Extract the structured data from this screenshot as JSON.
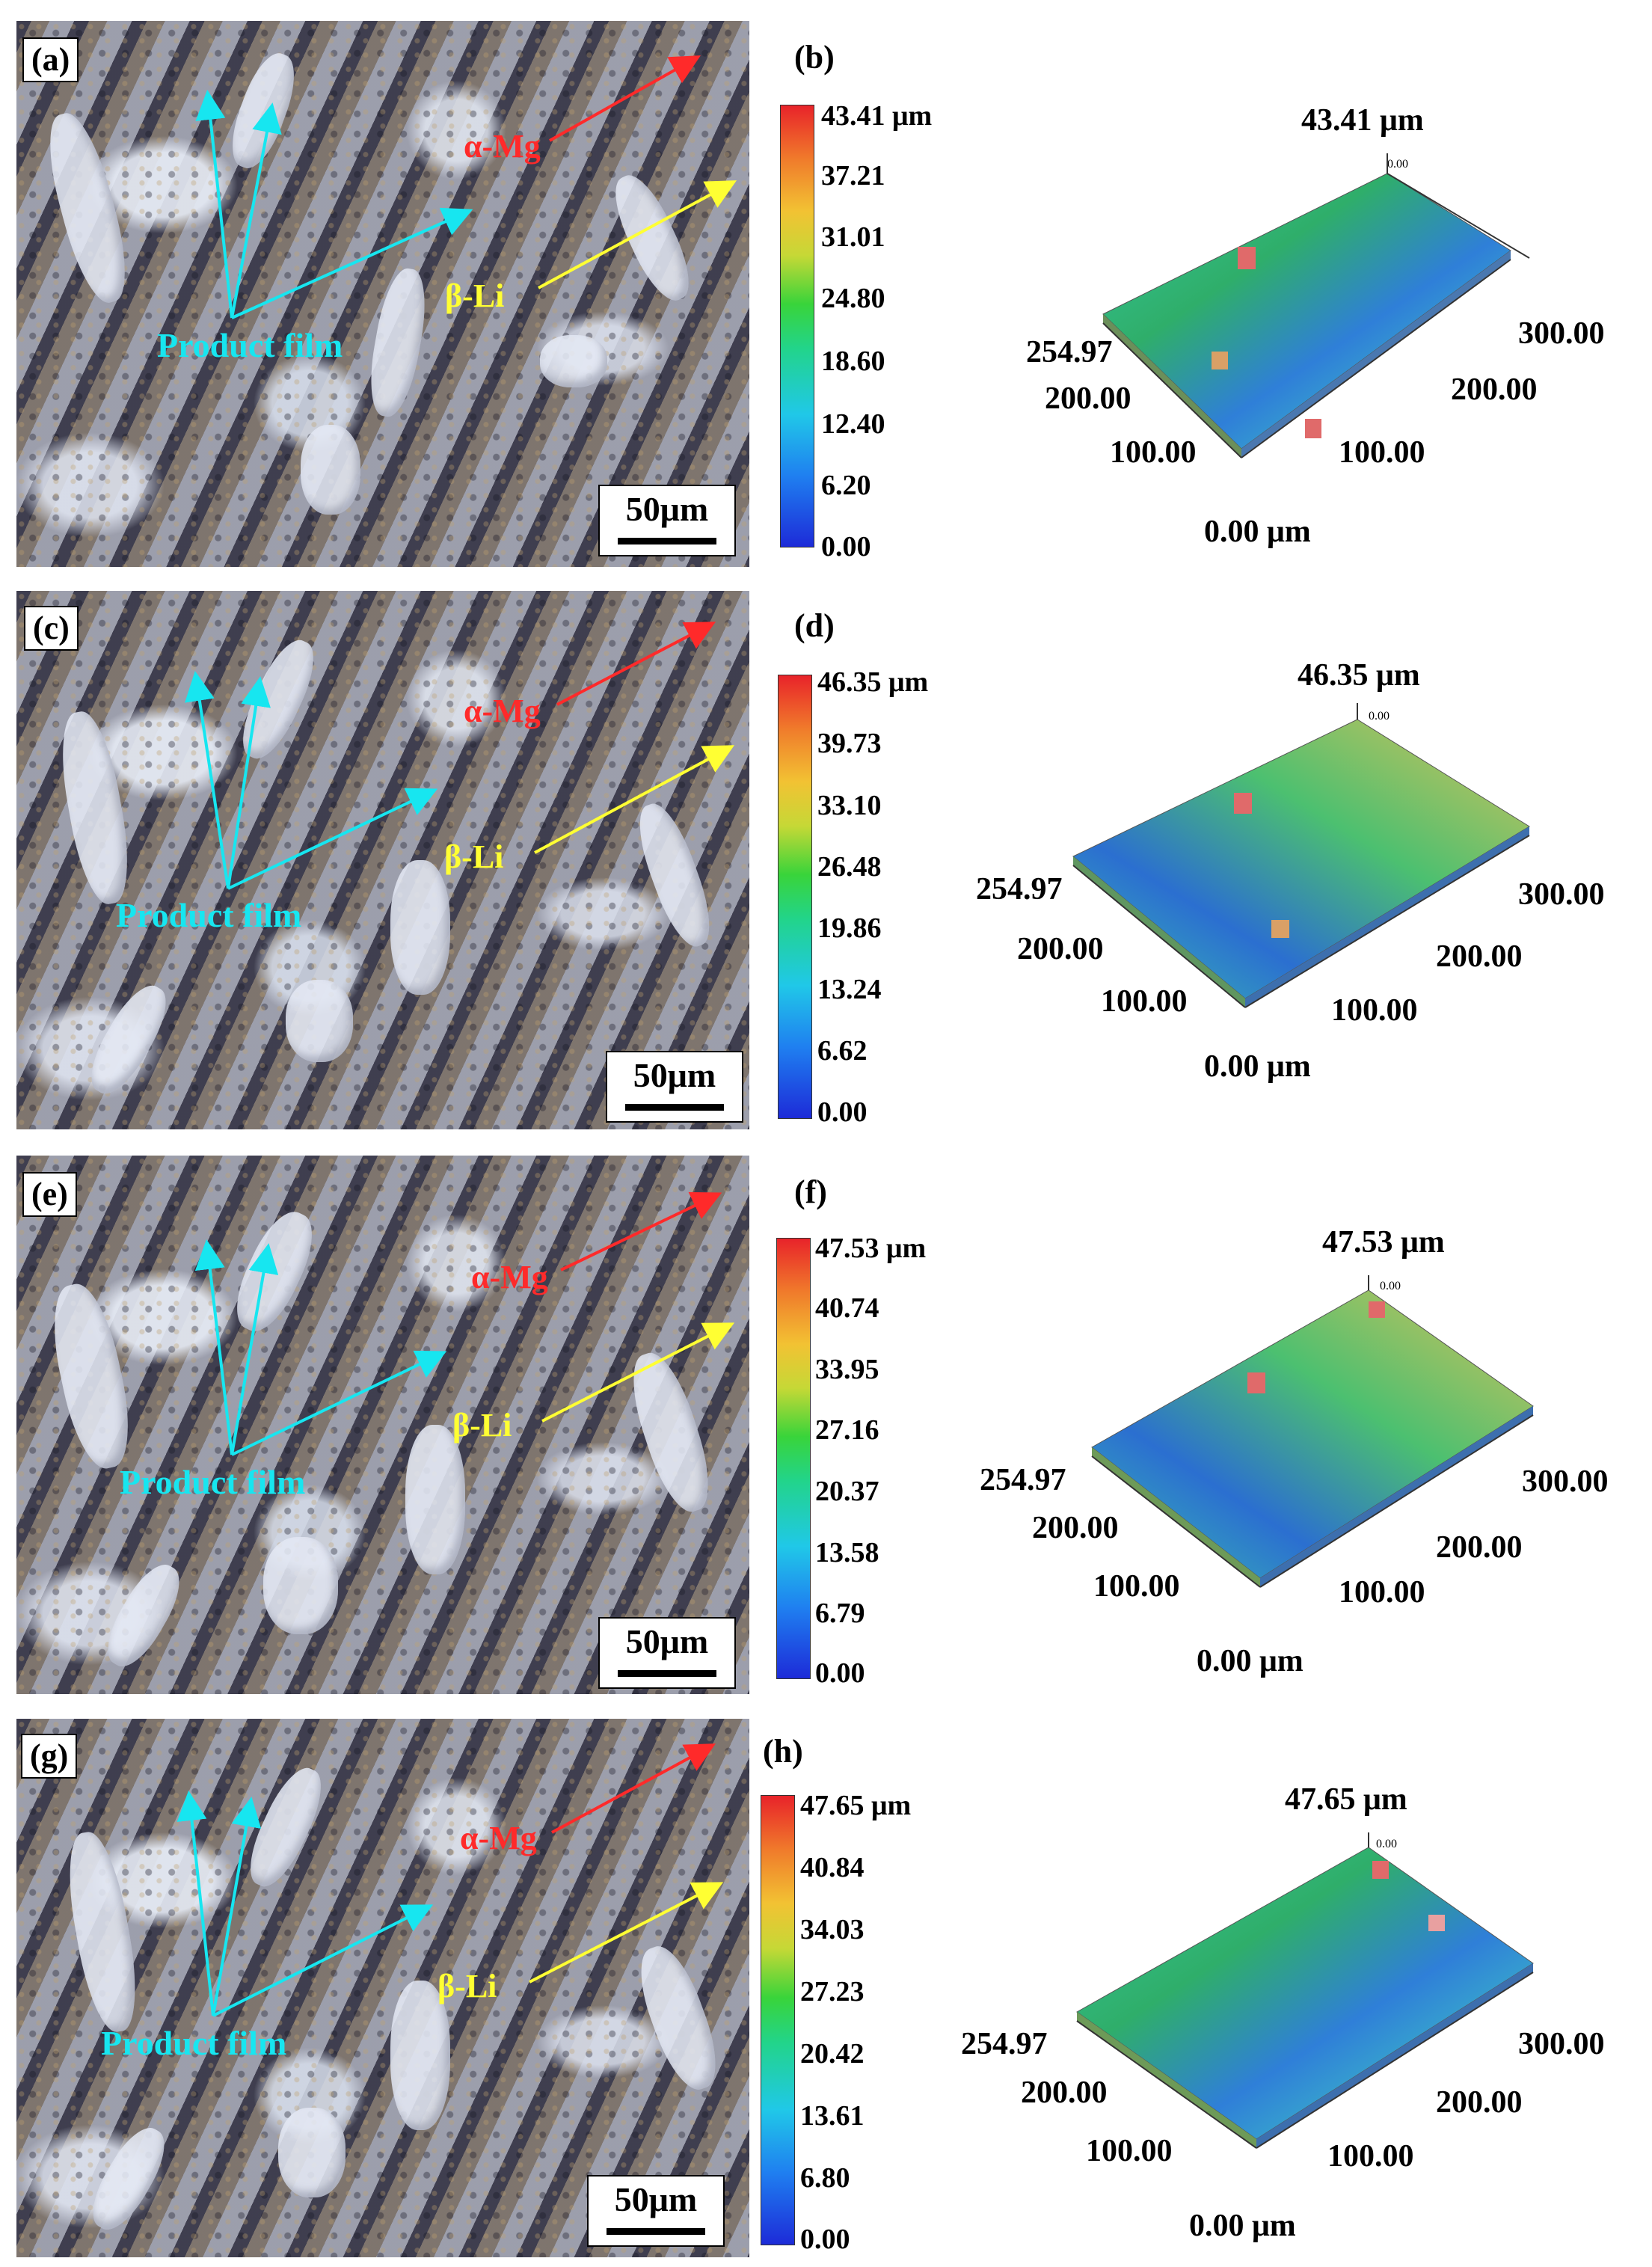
{
  "phases": {
    "alpha_mg": "α-Mg",
    "beta_li": "β-Li",
    "product_film": "Product film"
  },
  "scale_bar": "50μm",
  "colors": {
    "alpha_mg": "#ff2a2a",
    "beta_li": "#ffff33",
    "product_film": "#17e6f0"
  },
  "rows": [
    {
      "micro_label": "(a)",
      "profile_label": "(b)",
      "colorbar_ticks": [
        "43.41 μm",
        "37.21",
        "31.01",
        "24.80",
        "18.60",
        "12.40",
        "6.20",
        "0.00"
      ],
      "surface": {
        "z_top": "43.41 μm",
        "z_small": "0.00",
        "y_max": "254.97",
        "y_mid": "200.00",
        "y_low": "100.00",
        "x_max": "300.00",
        "x_mid": "200.00",
        "x_low": "100.00",
        "origin": "0.00 μm"
      }
    },
    {
      "micro_label": "(c)",
      "profile_label": "(d)",
      "colorbar_ticks": [
        "46.35 μm",
        "39.73",
        "33.10",
        "26.48",
        "19.86",
        "13.24",
        "6.62",
        "0.00"
      ],
      "surface": {
        "z_top": "46.35 μm",
        "z_small": "0.00",
        "y_max": "254.97",
        "y_mid": "200.00",
        "y_low": "100.00",
        "x_max": "300.00",
        "x_mid": "200.00",
        "x_low": "100.00",
        "origin": "0.00 μm"
      }
    },
    {
      "micro_label": "(e)",
      "profile_label": "(f)",
      "colorbar_ticks": [
        "47.53 μm",
        "40.74",
        "33.95",
        "27.16",
        "20.37",
        "13.58",
        "6.79",
        "0.00"
      ],
      "surface": {
        "z_top": "47.53 μm",
        "z_small": "0.00",
        "y_max": "254.97",
        "y_mid": "200.00",
        "y_low": "100.00",
        "x_max": "300.00",
        "x_mid": "200.00",
        "x_low": "100.00",
        "origin": "0.00 μm"
      }
    },
    {
      "micro_label": "(g)",
      "profile_label": "(h)",
      "colorbar_ticks": [
        "47.65 μm",
        "40.84",
        "34.03",
        "27.23",
        "20.42",
        "13.61",
        "6.80",
        "0.00"
      ],
      "surface": {
        "z_top": "47.65 μm",
        "z_small": "0.00",
        "y_max": "254.97",
        "y_mid": "200.00",
        "y_low": "100.00",
        "x_max": "300.00",
        "x_mid": "200.00",
        "x_low": "100.00",
        "origin": "0.00 μm"
      }
    }
  ]
}
